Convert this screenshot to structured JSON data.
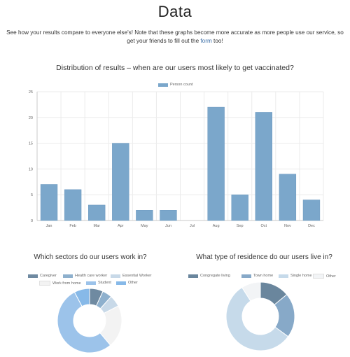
{
  "page": {
    "title": "Data",
    "intro_before": "See how your results compare to everyone else's! Note that these graphs become more accurate as more people use our service, so get your friends to fill out the ",
    "intro_link": "form",
    "intro_after": " too!"
  },
  "colors": {
    "bar_fill": "#7ba7cb",
    "bar_stroke": "#6b98bf",
    "grid": "#ebebeb",
    "axis_text": "#666666"
  },
  "chart_data": [
    {
      "type": "bar",
      "title": "Distribution of results – when are our users most likely to get vaccinated?",
      "categories": [
        "Jan",
        "Feb",
        "Mar",
        "Apr",
        "May",
        "Jun",
        "Jul",
        "Aug",
        "Sep",
        "Oct",
        "Nov",
        "Dec"
      ],
      "series": [
        {
          "name": "Person count",
          "values": [
            7,
            6,
            3,
            15,
            2,
            2,
            0,
            22,
            5,
            21,
            9,
            4
          ]
        }
      ],
      "ylim": [
        0,
        25
      ],
      "yticks": [
        0,
        5,
        10,
        15,
        20,
        25
      ],
      "grid": true,
      "legend": "top-center"
    },
    {
      "type": "pie",
      "title": "Which sectors do our users work in?",
      "labels": [
        "Caregiver",
        "Health care worker",
        "Essential Worker",
        "Work from home",
        "Student",
        "Other"
      ],
      "values": [
        7,
        5,
        6,
        22,
        55,
        8
      ],
      "colors": [
        "#6f8aa1",
        "#8eb0cd",
        "#c8d9e8",
        "#f3f3f3",
        "#9cc3ea",
        "#87b9e8"
      ],
      "donut": true,
      "legend": "top"
    },
    {
      "type": "pie",
      "title": "What type of residence do our users live in?",
      "labels": [
        "Congregate living",
        "Town home",
        "Single home",
        "Other"
      ],
      "values": [
        14,
        21,
        56,
        9
      ],
      "colors": [
        "#6a869d",
        "#87a9c8",
        "#c6daea",
        "#f2f4f6"
      ],
      "donut": true,
      "legend": "top"
    }
  ]
}
